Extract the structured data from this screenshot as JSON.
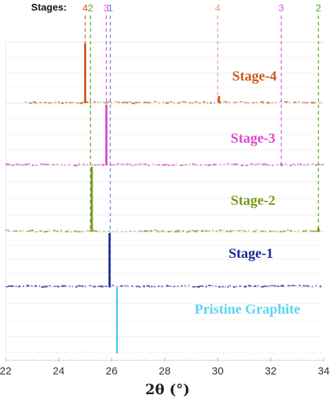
{
  "chart_data": {
    "type": "line",
    "stages_label": "Stages:",
    "xlabel": "2θ (°)",
    "xlim": [
      22,
      34
    ],
    "x_ticks": [
      22,
      24,
      26,
      28,
      30,
      32,
      34
    ],
    "markers": [
      {
        "label": "4",
        "x": 25.0,
        "color": "#d4581f"
      },
      {
        "label": "2",
        "x": 25.2,
        "color": "#52a62d"
      },
      {
        "label": "3",
        "x": 25.8,
        "color": "#e04fd6"
      },
      {
        "label": "1",
        "x": 25.95,
        "color": "#6a7fd1"
      },
      {
        "label": "4",
        "x": 30.0,
        "color": "#e8a080"
      },
      {
        "label": "3",
        "x": 32.4,
        "color": "#e04fd6"
      },
      {
        "label": "2",
        "x": 33.8,
        "color": "#52a62d"
      }
    ],
    "series": [
      {
        "name": "Stage-4",
        "color": "#cc5a1e",
        "peaks": [
          {
            "x": 25.0,
            "y": 1.0
          },
          {
            "x": 30.05,
            "y": 0.12
          }
        ]
      },
      {
        "name": "Stage-3",
        "color": "#d94ad0",
        "peaks": [
          {
            "x": 25.8,
            "y": 1.0
          },
          {
            "x": 32.4,
            "y": 0.03
          }
        ]
      },
      {
        "name": "Stage-2",
        "color": "#7a9a1a",
        "peaks": [
          {
            "x": 25.25,
            "y": 1.0
          },
          {
            "x": 33.8,
            "y": 0.06
          }
        ]
      },
      {
        "name": "Stage-1",
        "color": "#1a2a9a",
        "peaks": [
          {
            "x": 25.92,
            "y": 1.0
          }
        ]
      },
      {
        "name": "Pristine Graphite",
        "color": "#5fd3f0",
        "peaks": [
          {
            "x": 26.2,
            "y": 1.0
          }
        ]
      }
    ]
  }
}
